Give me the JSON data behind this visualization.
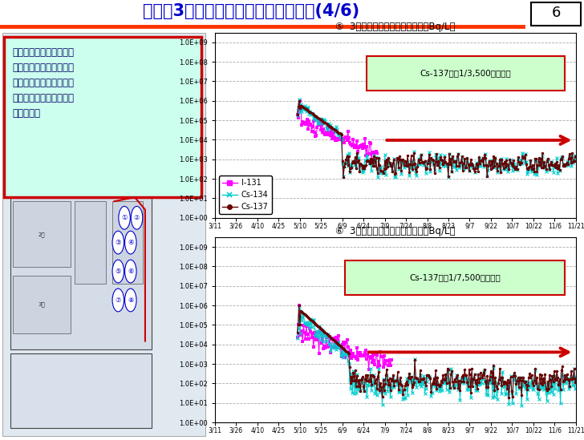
{
  "title": "海水（3号機スクリーン）放射能濃度(4/6)",
  "page_num": "6",
  "chart1_title": "⑤  3号機シルトスクリーン内側（Bq/L）",
  "chart2_title": "⑥  3号機シルトスクリーン外側（Bq/L）",
  "annotation1": "Cs-137で約1/3,500まで下降",
  "annotation2": "Cs-137で約1/7,500まで下降",
  "text_box_lines": [
    "現時点でセシウム放射能",
    "濃度の有意な変動は見ら",
    "れない（港湾内に閉じ込",
    "められている状態と考え",
    "られる）。"
  ],
  "x_labels": [
    "3/11",
    "3/26",
    "4/10",
    "4/25",
    "5/10",
    "5/25",
    "6/9",
    "6/24",
    "7/9",
    "7/24",
    "8/8",
    "8/23",
    "9/7",
    "9/22",
    "10/7",
    "10/22",
    "11/6",
    "11/21"
  ],
  "title_color": "#0000cc",
  "header_line_color": "#ff3300",
  "chart_bg": "#ffffff",
  "grid_color": "#999999",
  "I131_color": "#ff00ff",
  "Cs134_color": "#00cccc",
  "Cs137_color": "#660000",
  "arrow_color": "#cc0000",
  "annotation_bg": "#ccffcc",
  "annotation_border": "#cc0000",
  "textbox_bg": "#ccffee",
  "textbox_border": "#cc0000",
  "map_bg": "#e8e8e8",
  "circle_color": "#0000cc",
  "red_curve_color": "#cc0000"
}
